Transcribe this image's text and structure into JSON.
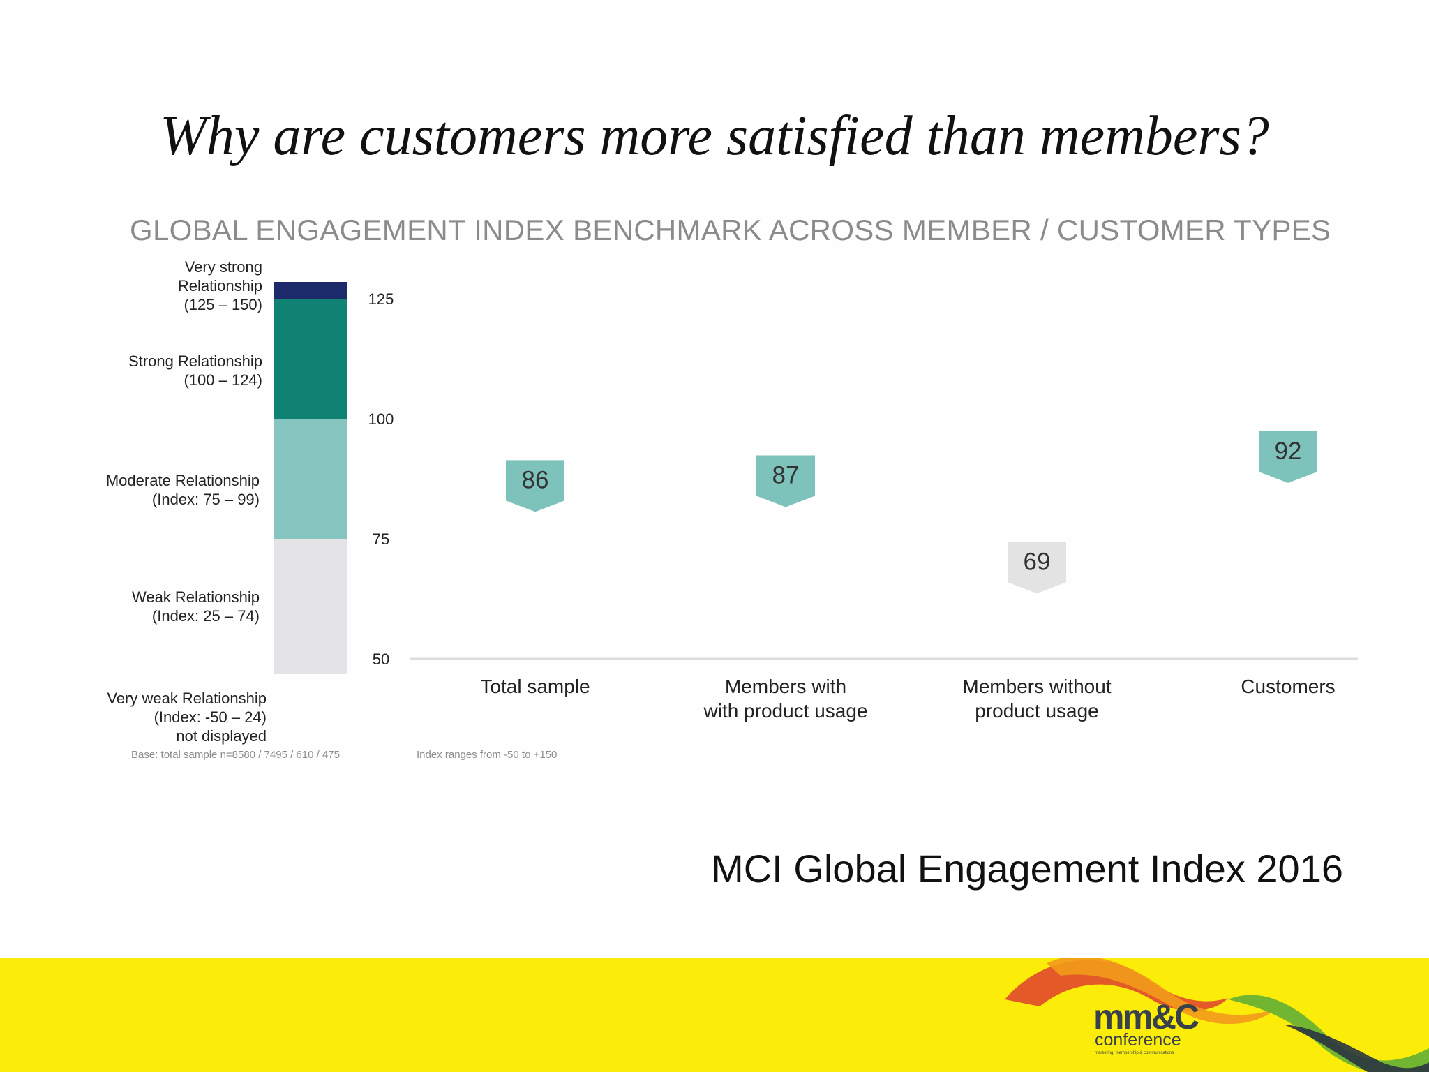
{
  "slide": {
    "title": "Why are customers more satisfied than members?",
    "source": "MCI Global Engagement Index 2016"
  },
  "chart_data": {
    "type": "scatter",
    "title": "GLOBAL ENGAGEMENT INDEX BENCHMARK ACROSS MEMBER / CUSTOMER TYPES",
    "categories": [
      [
        "Total sample"
      ],
      [
        "Members with",
        "with product usage"
      ],
      [
        "Members without",
        "product usage"
      ],
      [
        "Customers"
      ]
    ],
    "values": [
      86,
      87,
      69,
      92
    ],
    "ylim": [
      50,
      125
    ],
    "yticks": [
      125,
      100,
      75,
      50
    ],
    "grid": false,
    "bands": [
      {
        "lines": [
          "Very strong",
          "Relationship",
          "(125 – 150)"
        ],
        "from": 125,
        "to": 150,
        "color": "#1c2a6b"
      },
      {
        "lines": [
          "Strong Relationship",
          "(100 – 124)"
        ],
        "from": 100,
        "to": 124,
        "color": "#0f8274"
      },
      {
        "lines": [
          "Moderate Relationship",
          "(Index: 75 – 99)"
        ],
        "from": 75,
        "to": 99,
        "color": "#86c5bf"
      },
      {
        "lines": [
          "Weak Relationship",
          "(Index: 25 – 74)"
        ],
        "from": 25,
        "to": 74,
        "color": "#e4e4e6"
      },
      {
        "lines": [
          "Very weak Relationship",
          "(Index: -50 – 24)",
          "not displayed"
        ],
        "from": -50,
        "to": 24,
        "color": null
      }
    ],
    "marker_colors": {
      "above_75": "#7ec2bc",
      "below_75": "#e3e3e4"
    },
    "notes": {
      "base": "Base: total sample n=8580 / 7495 / 610 / 475",
      "range": "Index ranges from -50 to +150"
    }
  },
  "footer": {
    "background": "#fbec0a",
    "logo_main": "mm&C",
    "logo_sub": "conference",
    "logo_tagline": "marketing, membership & communications"
  }
}
